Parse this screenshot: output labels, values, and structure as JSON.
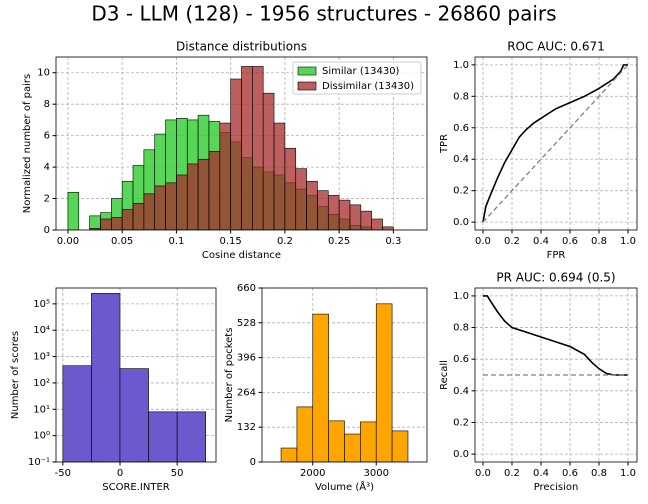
{
  "title": "D3 - LLM (128) - 1956 structures - 26860 pairs",
  "chart_data": [
    {
      "type": "histogram",
      "title": "Distance distributions",
      "xlabel": "Cosine distance",
      "ylabel": "Normalized number of pairs",
      "bins": [
        0,
        0.01,
        0.02,
        0.03,
        0.04,
        0.05,
        0.06,
        0.07,
        0.08,
        0.09,
        0.1,
        0.11,
        0.12,
        0.13,
        0.14,
        0.15,
        0.16,
        0.17,
        0.18,
        0.19,
        0.2,
        0.21,
        0.22,
        0.23,
        0.24,
        0.25,
        0.26,
        0.27,
        0.28,
        0.29,
        0.3,
        0.31
      ],
      "series": [
        {
          "name": "Similar (13430)",
          "color": "#32cd32",
          "alpha": 0.82,
          "values": [
            2.4,
            0,
            0.9,
            1.1,
            2.0,
            3.1,
            4.1,
            5.1,
            6.1,
            7.0,
            7.1,
            7.0,
            7.3,
            6.9,
            6.2,
            5.6,
            4.6,
            4.0,
            3.7,
            3.5,
            3.0,
            2.6,
            2.2,
            1.5,
            1.0,
            0.7,
            0.3,
            0.2,
            0,
            0,
            0
          ]
        },
        {
          "name": "Dissimilar (13430)",
          "color": "#a52a2a",
          "alpha": 0.75,
          "values": [
            0,
            0,
            0.1,
            0.7,
            0.8,
            1.3,
            1.7,
            2.3,
            2.8,
            3.0,
            3.5,
            4.2,
            4.5,
            5.0,
            6.8,
            9.6,
            10.4,
            10.4,
            8.7,
            6.8,
            5.2,
            3.9,
            3.1,
            2.5,
            2.2,
            1.9,
            1.6,
            1.2,
            0.7,
            0.2,
            0
          ]
        }
      ],
      "xlim": [
        -0.011,
        0.331
      ],
      "xticks": [
        {
          "value": 0,
          "label": "0.00"
        },
        0.05,
        0.1,
        0.15,
        0.2,
        0.25,
        0.3
      ],
      "ylim": [
        0,
        11.0
      ],
      "yticks": [
        0,
        2,
        4,
        6,
        8,
        10
      ],
      "grid": true,
      "legend": "upper right"
    },
    {
      "type": "line",
      "title": "ROC AUC: 0.671",
      "xlabel": "FPR",
      "ylabel": "TPR",
      "series": [
        {
          "color": "#000000",
          "dash": false,
          "x": [
            0,
            0.02,
            0.05,
            0.1,
            0.15,
            0.2,
            0.25,
            0.3,
            0.35,
            0.4,
            0.45,
            0.5,
            0.6,
            0.7,
            0.8,
            0.9,
            0.95,
            0.97,
            1
          ],
          "values": [
            0,
            0.1,
            0.17,
            0.28,
            0.38,
            0.46,
            0.54,
            0.59,
            0.63,
            0.66,
            0.69,
            0.72,
            0.76,
            0.8,
            0.85,
            0.91,
            0.96,
            1.0,
            1.0
          ]
        },
        {
          "color": "#808080",
          "dash": true,
          "x": [
            0,
            1
          ],
          "values": [
            0,
            1
          ]
        }
      ],
      "xlim": [
        -0.055,
        1.062
      ],
      "xticks": [
        {
          "value": 0,
          "label": "0.0"
        },
        0.2,
        0.4,
        0.6,
        0.8,
        {
          "value": 1,
          "label": "1.0"
        }
      ],
      "ylim": [
        -0.05,
        1.05
      ],
      "yticks": [
        {
          "value": 0,
          "label": "0.0"
        },
        0.2,
        0.4,
        0.6,
        0.8,
        {
          "value": 1,
          "label": "1.0"
        }
      ],
      "grid": true
    },
    {
      "type": "histogram",
      "xlabel": "SCORE.INTER",
      "ylabel": "Number of scores",
      "bins": [
        -50,
        -25,
        0,
        25,
        50,
        75
      ],
      "series": [
        {
          "color": "#6a5acd",
          "alpha": 1,
          "values": [
            450,
            250000,
            350,
            8,
            8
          ]
        }
      ],
      "xlim": [
        -56,
        84
      ],
      "xticks": [
        -50,
        0,
        50
      ],
      "ylim": [
        0.1,
        400000
      ],
      "yscale": "log",
      "yticks": [
        {
          "value": 0.1,
          "label": "10⁻¹"
        },
        {
          "value": 1,
          "label": "10⁰"
        },
        {
          "value": 10,
          "label": "10¹"
        },
        {
          "value": 100,
          "label": "10²"
        },
        {
          "value": 1000,
          "label": "10³"
        },
        {
          "value": 10000,
          "label": "10⁴"
        },
        {
          "value": 100000,
          "label": "10⁵"
        }
      ],
      "grid": true
    },
    {
      "type": "histogram",
      "xlabel": "Volume (Å³)",
      "ylabel": "Number of pockets",
      "bins": [
        1500,
        1750,
        2000,
        2250,
        2500,
        2750,
        3000,
        3250,
        3500
      ],
      "series": [
        {
          "color": "#ffa500",
          "alpha": 1,
          "values": [
            53,
            209,
            561,
            156,
            106,
            152,
            600,
            118
          ]
        }
      ],
      "xlim": [
        1200,
        3800
      ],
      "xticks": [
        2000,
        3000
      ],
      "ylim": [
        0,
        660
      ],
      "yticks": [
        0,
        132,
        264,
        396,
        528,
        660
      ],
      "grid": true
    },
    {
      "type": "line",
      "title": "PR AUC: 0.694 (0.5)",
      "xlabel": "Precision",
      "ylabel": "Recall",
      "series": [
        {
          "color": "#000000",
          "dash": false,
          "x": [
            0,
            0.03,
            0.05,
            0.1,
            0.15,
            0.2,
            0.3,
            0.4,
            0.5,
            0.6,
            0.7,
            0.75,
            0.8,
            0.85,
            0.9,
            1.0
          ],
          "values": [
            1.0,
            1.0,
            0.97,
            0.9,
            0.84,
            0.8,
            0.77,
            0.74,
            0.71,
            0.68,
            0.63,
            0.58,
            0.54,
            0.51,
            0.5,
            0.5
          ]
        },
        {
          "color": "#808080",
          "dash": true,
          "x": [
            0,
            1
          ],
          "values": [
            0.5,
            0.5
          ]
        }
      ],
      "xlim": [
        -0.055,
        1.062
      ],
      "xticks": [
        {
          "value": 0,
          "label": "0.0"
        },
        0.2,
        0.4,
        0.6,
        0.8,
        {
          "value": 1,
          "label": "1.0"
        }
      ],
      "ylim": [
        -0.05,
        1.05
      ],
      "yticks": [
        {
          "value": 0,
          "label": "0.0"
        },
        0.2,
        0.4,
        0.6,
        0.8,
        {
          "value": 1,
          "label": "1.0"
        }
      ],
      "grid": true
    }
  ]
}
